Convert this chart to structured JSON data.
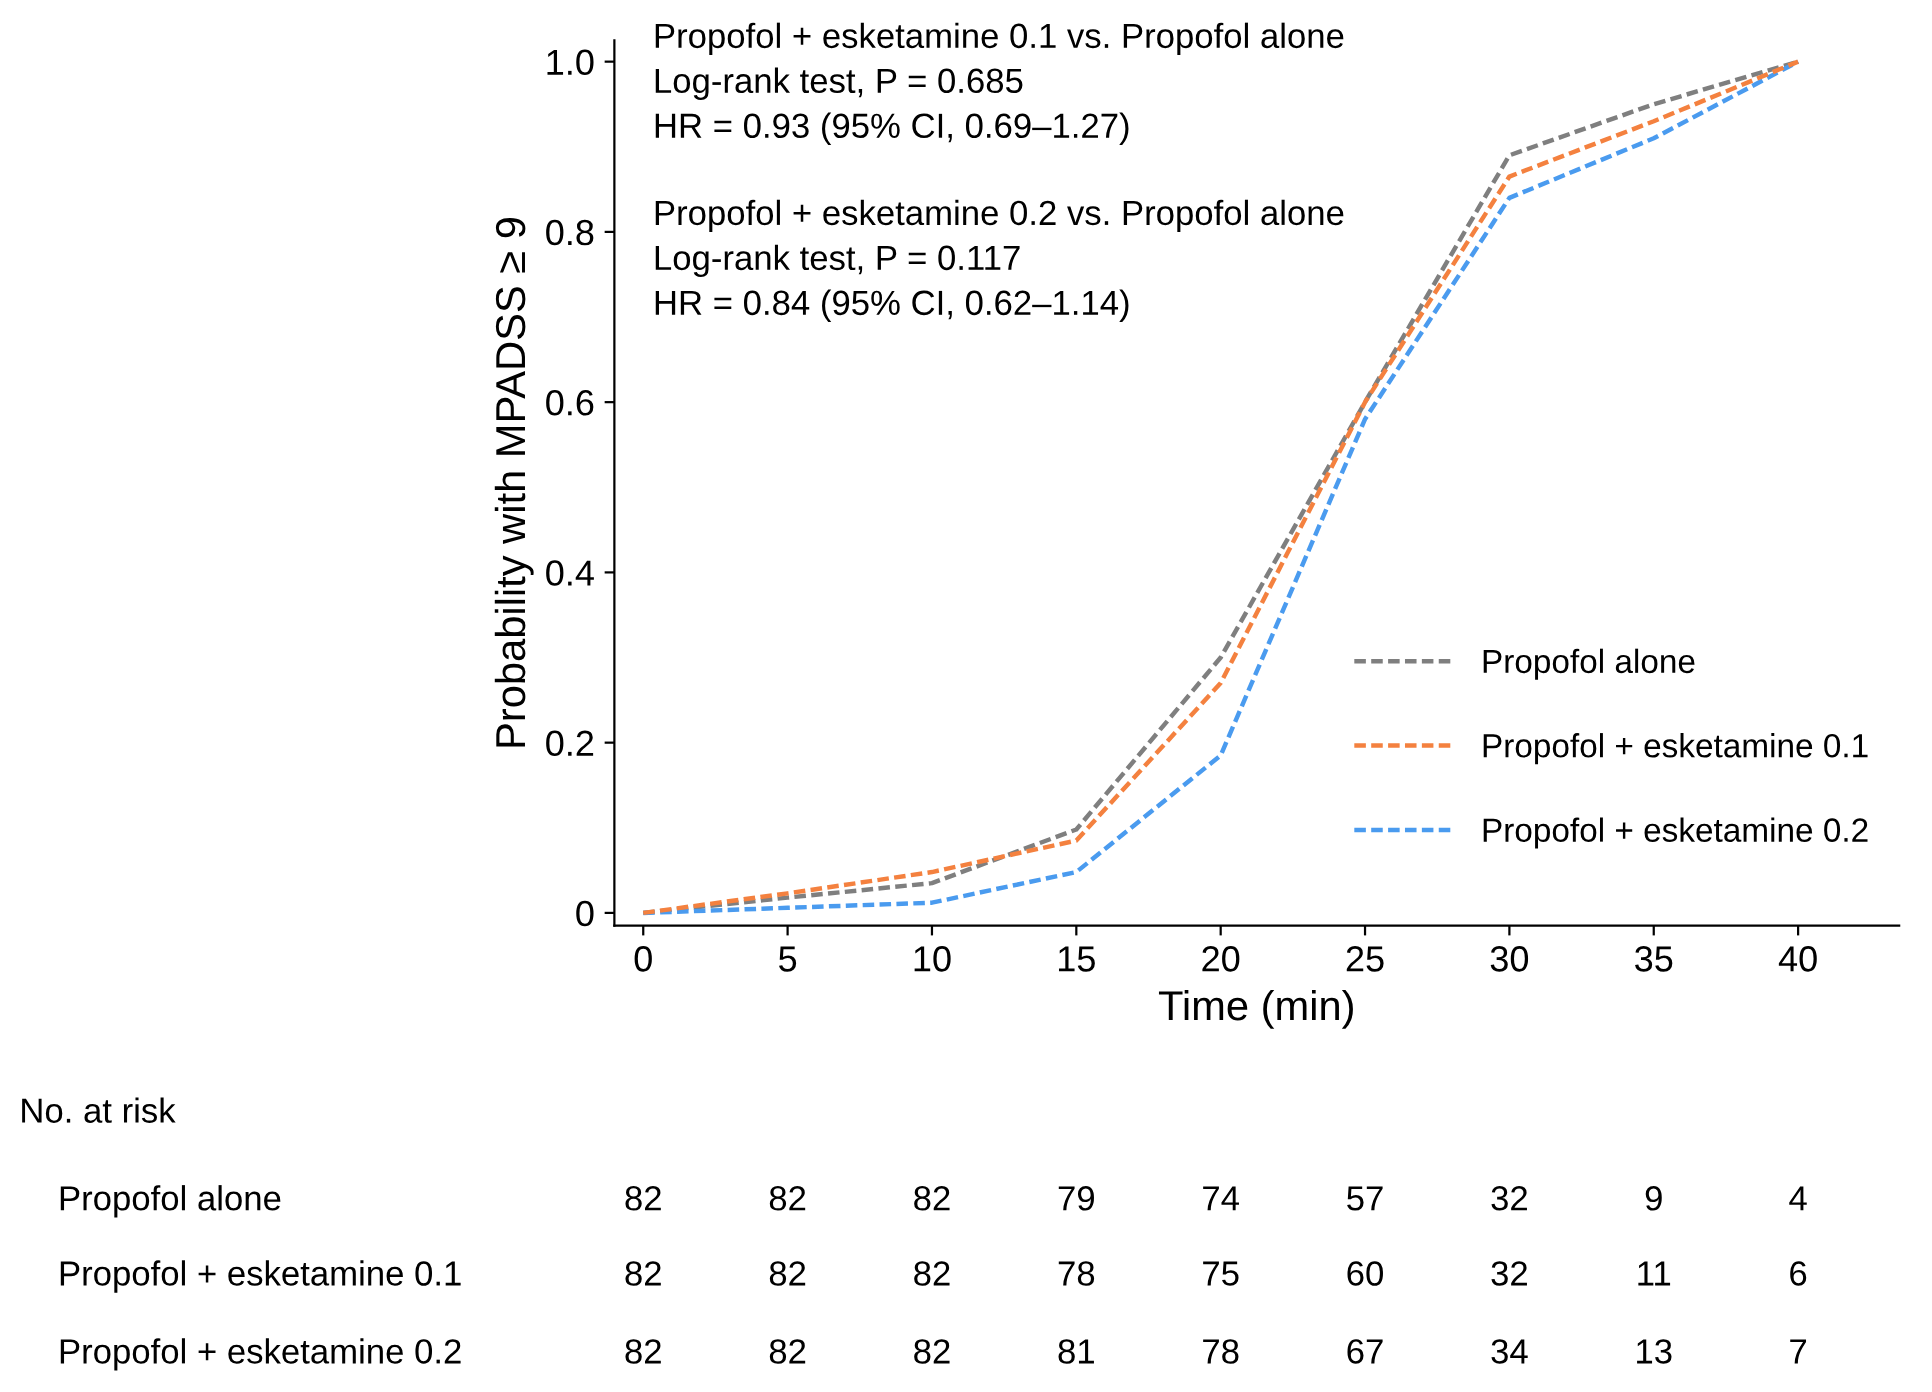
{
  "chart_data": {
    "type": "line",
    "x": [
      0,
      5,
      10,
      15,
      20,
      25,
      30,
      35,
      40
    ],
    "xlabel": "Time (min)",
    "ylabel": "Probability with MPADSS ≥ 9",
    "series": [
      {
        "name": "Propofol alone",
        "color": "#7f7f7f",
        "values": [
          0,
          0.018,
          0.035,
          0.098,
          0.3,
          0.6,
          0.89,
          0.95,
          1.0
        ]
      },
      {
        "name": "Propofol + esketamine 0.1",
        "color": "#f4813f",
        "values": [
          0,
          0.023,
          0.048,
          0.085,
          0.27,
          0.6,
          0.865,
          0.93,
          1.0
        ]
      },
      {
        "name": "Propofol + esketamine 0.2",
        "color": "#4a9bef",
        "values": [
          0,
          0.006,
          0.012,
          0.048,
          0.185,
          0.58,
          0.84,
          0.91,
          1.0
        ]
      }
    ],
    "line_style": "dashed",
    "marker": "none",
    "legend": "right",
    "grid": false,
    "xlim": [
      -1,
      43.5
    ],
    "xticks": [
      0,
      5,
      10,
      15,
      20,
      25,
      30,
      35,
      40
    ],
    "ylim": [
      -0.015,
      1.025
    ],
    "yticks": [
      0,
      0.2,
      0.4,
      0.6,
      0.8,
      {
        "value": 1,
        "label": "1.0"
      }
    ],
    "annotations": [
      "Propofol + esketamine 0.1 vs. Propofol alone\nLog-rank test, P = 0.685\nHR = 0.93 (95% CI, 0.69–1.27)",
      "Propofol + esketamine 0.2 vs. Propofol alone\nLog-rank test, P = 0.117\nHR = 0.84 (95% CI, 0.62–1.14)",
      "No. at risk",
      "Propofol alone",
      "82",
      "82",
      "82",
      "79",
      "74",
      "57",
      "32",
      "9",
      "4",
      "Propofol + esketamine 0.1",
      "82",
      "82",
      "82",
      "78",
      "75",
      "60",
      "32",
      "11",
      "6",
      "Propofol + esketamine 0.2",
      "82",
      "82",
      "82",
      "81",
      "78",
      "67",
      "34",
      "13",
      "7"
    ]
  }
}
